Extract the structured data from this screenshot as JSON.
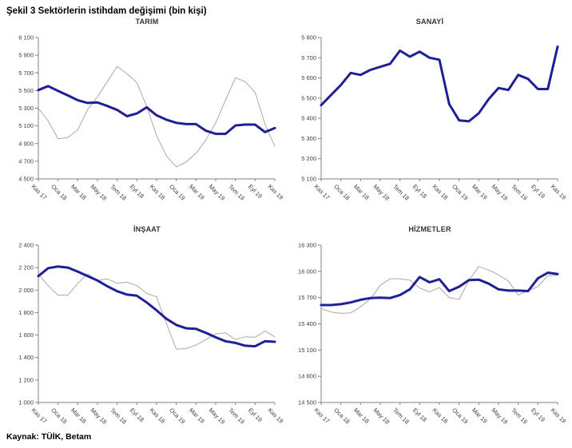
{
  "page": {
    "title": "Şekil 3 Sektörlerin istihdam değişimi (bin kişi)",
    "source": "Kaynak: TÜİK, Betam"
  },
  "colors": {
    "line_primary": "#1f2096",
    "line_secondary": "#a9a9a9",
    "axis": "#808080",
    "tick_text": "#3f3f3f"
  },
  "chart_data": [
    {
      "type": "line",
      "title": "TARIM",
      "ylim": [
        4500,
        6100
      ],
      "ytick_step": 200,
      "n_points": 25,
      "x_tick_labels": [
        "Kas 17",
        "Oca 18",
        "Mar 18",
        "May 18",
        "Tem 18",
        "Eyl 18",
        "Kas 18",
        "Oca 19",
        "Mar 19",
        "May 19",
        "Tem 19",
        "Eyl 19",
        "Kas 19"
      ],
      "legend": "none",
      "grid": false,
      "series": [
        {
          "name": "gray-thin-line",
          "color": "#a9a9a9",
          "width": 1,
          "values": [
            5300,
            5155,
            4955,
            4970,
            5055,
            5285,
            5430,
            5600,
            5775,
            5690,
            5590,
            5320,
            4990,
            4760,
            4635,
            4690,
            4790,
            4940,
            5135,
            5390,
            5645,
            5600,
            5480,
            5120,
            4870
          ]
        },
        {
          "name": "blue-thick-line",
          "color": "#1f2096",
          "width": 3,
          "values": [
            5505,
            5550,
            5495,
            5445,
            5390,
            5360,
            5365,
            5325,
            5280,
            5210,
            5240,
            5310,
            5220,
            5170,
            5135,
            5120,
            5120,
            5045,
            5010,
            5010,
            5105,
            5115,
            5115,
            5030,
            5075
          ]
        }
      ]
    },
    {
      "type": "line",
      "title": "SANAYİ",
      "ylim": [
        5100,
        5800
      ],
      "ytick_step": 100,
      "n_points": 25,
      "x_tick_labels": [
        "Kas 17",
        "Oca 18",
        "Mar 18",
        "May 18",
        "Tem 18",
        "Eyl 18",
        "Kas 18",
        "Oca 19",
        "Mar 19",
        "May 19",
        "Tem 19",
        "Eyl 19",
        "Kas 19"
      ],
      "legend": "none",
      "grid": false,
      "series": [
        {
          "name": "blue-thick-line",
          "color": "#1f2096",
          "width": 3,
          "values": [
            5465,
            5515,
            5565,
            5625,
            5615,
            5640,
            5655,
            5670,
            5735,
            5705,
            5730,
            5700,
            5690,
            5470,
            5390,
            5385,
            5425,
            5495,
            5550,
            5540,
            5615,
            5595,
            5545,
            5545,
            5755
          ]
        }
      ]
    },
    {
      "type": "line",
      "title": "İNŞAAT",
      "ylim": [
        1000,
        2400
      ],
      "ytick_step": 200,
      "n_points": 25,
      "x_tick_labels": [
        "Kas 17",
        "Oca 18",
        "Mar 18",
        "May 18",
        "Tem 18",
        "Eyl 18",
        "Kas 18",
        "Oca 19",
        "Mar 19",
        "May 19",
        "Tem 19",
        "Eyl 19",
        "Kas 19"
      ],
      "legend": "none",
      "grid": false,
      "series": [
        {
          "name": "gray-thin-line",
          "color": "#a9a9a9",
          "width": 1,
          "values": [
            2140,
            2040,
            1955,
            1955,
            2060,
            2145,
            2085,
            2100,
            2060,
            2070,
            2040,
            1970,
            1940,
            1700,
            1475,
            1480,
            1510,
            1560,
            1610,
            1620,
            1560,
            1585,
            1580,
            1635,
            1585
          ]
        },
        {
          "name": "blue-thick-line",
          "color": "#1f2096",
          "width": 3,
          "values": [
            2125,
            2195,
            2210,
            2200,
            2165,
            2125,
            2085,
            2035,
            1990,
            1960,
            1950,
            1890,
            1820,
            1745,
            1690,
            1660,
            1655,
            1620,
            1580,
            1545,
            1530,
            1505,
            1500,
            1545,
            1540
          ]
        }
      ]
    },
    {
      "type": "line",
      "title": "HİZMETLER",
      "ylim": [
        14500,
        16300
      ],
      "ytick_step": 300,
      "n_points": 25,
      "x_tick_labels": [
        "Kas 17",
        "Oca 18",
        "Mar 18",
        "May 18",
        "Tem 18",
        "Eyl 18",
        "Kas 18",
        "Oca 19",
        "Mar 19",
        "May 19",
        "Tem 19",
        "Eyl 19",
        "Kas 19"
      ],
      "legend": "none",
      "grid": false,
      "series": [
        {
          "name": "gray-thin-line",
          "color": "#a9a9a9",
          "width": 1,
          "values": [
            15575,
            15535,
            15520,
            15525,
            15595,
            15685,
            15840,
            15915,
            15915,
            15900,
            15810,
            15765,
            15815,
            15700,
            15680,
            15900,
            16055,
            16015,
            15960,
            15890,
            15730,
            15780,
            15825,
            15950,
            15955
          ]
        },
        {
          "name": "blue-thick-line",
          "color": "#1f2096",
          "width": 3,
          "values": [
            15615,
            15615,
            15625,
            15645,
            15675,
            15695,
            15700,
            15695,
            15730,
            15795,
            15935,
            15875,
            15910,
            15775,
            15825,
            15900,
            15905,
            15860,
            15795,
            15780,
            15780,
            15775,
            15920,
            15985,
            15970
          ]
        }
      ]
    }
  ]
}
